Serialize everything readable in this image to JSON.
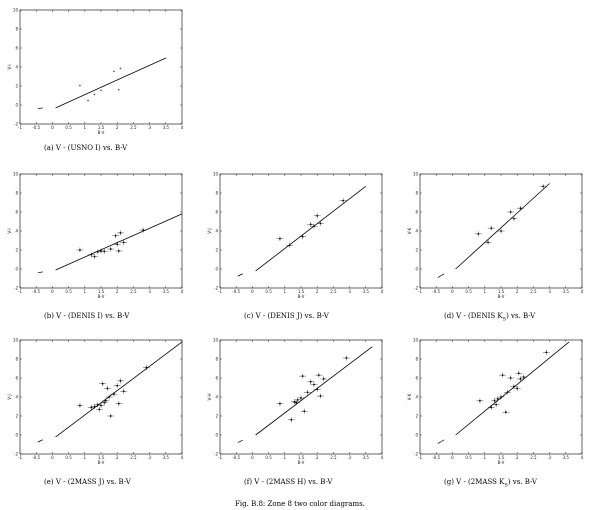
{
  "figure_caption": "Fig. B.8: Zone 8 two color diagrams.",
  "chart_data": [
    {
      "type": "scatter",
      "caption": "(a) V - (USNO I) vs. B-V",
      "xlabel": "B-V",
      "ylabel": "V-I",
      "xlim": [
        -1,
        4
      ],
      "ylim": [
        -2,
        10
      ],
      "xticks": [
        "-1",
        "-0.5",
        "0",
        "0.5",
        "1",
        "1.5",
        "2",
        "2.5",
        "3",
        "3.5",
        "4"
      ],
      "yticks": [
        "-2",
        "0",
        "2",
        "4",
        "6",
        "8",
        "10"
      ],
      "errorbars": false,
      "points": [
        [
          0.85,
          2.05
        ],
        [
          1.1,
          0.45
        ],
        [
          1.3,
          1.1
        ],
        [
          1.5,
          1.55
        ],
        [
          1.9,
          3.55
        ],
        [
          2.1,
          3.85
        ],
        [
          2.05,
          1.6
        ]
      ],
      "fit_dashed": [
        [
          -0.45,
          -0.4
        ],
        [
          -0.3,
          -0.3
        ]
      ],
      "fit_line": [
        [
          0.1,
          -0.3
        ],
        [
          3.5,
          4.95
        ]
      ]
    },
    {
      "type": "scatter",
      "caption": "(b) V - (DENIS I) vs. B-V",
      "xlabel": "B-V",
      "ylabel": "V-I",
      "xlim": [
        -1,
        4
      ],
      "ylim": [
        -2,
        10
      ],
      "xticks": [
        "-1",
        "-0.5",
        "0",
        "0.5",
        "1",
        "1.5",
        "2",
        "2.5",
        "3",
        "3.5",
        "4"
      ],
      "yticks": [
        "-2",
        "0",
        "2",
        "4",
        "6",
        "8",
        "10"
      ],
      "errorbars": true,
      "points": [
        [
          0.85,
          2.0
        ],
        [
          1.2,
          1.5
        ],
        [
          1.4,
          1.8
        ],
        [
          1.5,
          1.9
        ],
        [
          1.6,
          1.85
        ],
        [
          1.8,
          2.1
        ],
        [
          1.95,
          3.5
        ],
        [
          2.1,
          3.8
        ],
        [
          2.0,
          2.6
        ],
        [
          2.2,
          2.8
        ],
        [
          2.05,
          1.9
        ],
        [
          2.8,
          4.1
        ],
        [
          1.3,
          1.3
        ]
      ],
      "fit_dashed": [
        [
          -0.45,
          -0.4
        ],
        [
          -0.3,
          -0.3
        ]
      ],
      "fit_line": [
        [
          0.1,
          -0.1
        ],
        [
          4.0,
          5.8
        ]
      ]
    },
    {
      "type": "scatter",
      "caption": "(c) V - (DENIS J) vs. B-V",
      "xlabel": "B-V",
      "ylabel": "V-J",
      "xlim": [
        -1,
        4
      ],
      "ylim": [
        -2,
        10
      ],
      "xticks": [
        "-1",
        "-0.5",
        "0",
        "0.5",
        "1",
        "1.5",
        "2",
        "2.5",
        "3",
        "3.5",
        "4"
      ],
      "yticks": [
        "-2",
        "0",
        "2",
        "4",
        "6",
        "8",
        "10"
      ],
      "errorbars": true,
      "points": [
        [
          0.85,
          3.2
        ],
        [
          1.15,
          2.5
        ],
        [
          1.55,
          3.4
        ],
        [
          1.8,
          4.7
        ],
        [
          1.9,
          4.5
        ],
        [
          2.0,
          5.6
        ],
        [
          2.1,
          4.8
        ],
        [
          2.8,
          7.2
        ]
      ],
      "fit_dashed": [
        [
          -0.45,
          -0.75
        ],
        [
          -0.3,
          -0.5
        ]
      ],
      "fit_line": [
        [
          0.1,
          -0.2
        ],
        [
          3.5,
          8.7
        ]
      ]
    },
    {
      "type": "scatter",
      "caption": "(d) V - (DENIS K_S) vs. B-V",
      "caption_main": "(d) V - (DENIS K",
      "caption_sub": "S",
      "caption_tail": ") vs. B-V",
      "xlabel": "B-V",
      "ylabel": "V-K",
      "xlim": [
        -1,
        4
      ],
      "ylim": [
        -2,
        10
      ],
      "xticks": [
        "-1",
        "-0.5",
        "0",
        "0.5",
        "1",
        "1.5",
        "2",
        "2.5",
        "3",
        "3.5",
        "4"
      ],
      "yticks": [
        "-2",
        "0",
        "2",
        "4",
        "6",
        "8",
        "10"
      ],
      "errorbars": true,
      "points": [
        [
          0.8,
          3.7
        ],
        [
          1.1,
          2.8
        ],
        [
          1.2,
          4.3
        ],
        [
          1.5,
          4.0
        ],
        [
          1.8,
          6.0
        ],
        [
          1.9,
          5.3
        ],
        [
          2.1,
          6.4
        ],
        [
          2.8,
          8.7
        ]
      ],
      "fit_dashed": [
        [
          -0.45,
          -0.9
        ],
        [
          -0.25,
          -0.5
        ]
      ],
      "fit_line": [
        [
          0.1,
          0.0
        ],
        [
          3.0,
          9.0
        ]
      ]
    },
    {
      "type": "scatter",
      "caption": "(e) V - (2MASS J) vs. B-V",
      "xlabel": "B-V",
      "ylabel": "V-J",
      "xlim": [
        -1,
        4
      ],
      "ylim": [
        -2,
        10
      ],
      "xticks": [
        "-1",
        "-0.5",
        "0",
        "0.5",
        "1",
        "1.5",
        "2",
        "2.5",
        "3",
        "3.5",
        "4"
      ],
      "yticks": [
        "-2",
        "0",
        "2",
        "4",
        "6",
        "8",
        "10"
      ],
      "errorbars": true,
      "points": [
        [
          0.85,
          3.1
        ],
        [
          1.2,
          2.9
        ],
        [
          1.3,
          3.0
        ],
        [
          1.4,
          3.2
        ],
        [
          1.5,
          3.1
        ],
        [
          1.55,
          5.4
        ],
        [
          1.6,
          3.4
        ],
        [
          1.7,
          4.9
        ],
        [
          1.75,
          4.0
        ],
        [
          1.8,
          2.0
        ],
        [
          1.9,
          4.3
        ],
        [
          2.0,
          5.2
        ],
        [
          2.05,
          3.3
        ],
        [
          2.1,
          5.7
        ],
        [
          2.2,
          4.6
        ],
        [
          2.9,
          7.1
        ],
        [
          1.45,
          2.7
        ],
        [
          1.65,
          3.6
        ]
      ],
      "fit_dashed": [
        [
          -0.45,
          -0.75
        ],
        [
          -0.3,
          -0.5
        ]
      ],
      "fit_line": [
        [
          0.1,
          -0.2
        ],
        [
          4.0,
          9.8
        ]
      ]
    },
    {
      "type": "scatter",
      "caption": "(f) V - (2MASS H) vs. B-V",
      "xlabel": "B-V",
      "ylabel": "V-H",
      "xlim": [
        -1,
        4
      ],
      "ylim": [
        -2,
        10
      ],
      "xticks": [
        "-1",
        "-0.5",
        "0",
        "0.5",
        "1",
        "1.5",
        "2",
        "2.5",
        "3",
        "3.5",
        "4"
      ],
      "yticks": [
        "-2",
        "0",
        "2",
        "4",
        "6",
        "8",
        "10"
      ],
      "errorbars": true,
      "points": [
        [
          0.85,
          3.3
        ],
        [
          1.2,
          1.6
        ],
        [
          1.3,
          3.5
        ],
        [
          1.4,
          3.7
        ],
        [
          1.5,
          3.9
        ],
        [
          1.55,
          6.2
        ],
        [
          1.7,
          4.5
        ],
        [
          1.8,
          5.6
        ],
        [
          1.9,
          5.3
        ],
        [
          2.0,
          4.8
        ],
        [
          2.05,
          6.3
        ],
        [
          2.1,
          4.1
        ],
        [
          2.2,
          5.9
        ],
        [
          2.9,
          8.1
        ],
        [
          1.6,
          2.5
        ],
        [
          1.35,
          3.4
        ]
      ],
      "fit_dashed": [
        [
          -0.45,
          -0.8
        ],
        [
          -0.3,
          -0.55
        ]
      ],
      "fit_line": [
        [
          0.1,
          0.0
        ],
        [
          3.7,
          9.3
        ]
      ]
    },
    {
      "type": "scatter",
      "caption": "(g) V - (2MASS K_S) vs. B-V",
      "caption_main": "(g) V - (2MASS K",
      "caption_sub": "S",
      "caption_tail": ") vs. B-V",
      "xlabel": "B-V",
      "ylabel": "V-K",
      "xlim": [
        -1,
        4
      ],
      "ylim": [
        -2,
        10
      ],
      "xticks": [
        "-1",
        "-0.5",
        "0",
        "0.5",
        "1",
        "1.5",
        "2",
        "2.5",
        "3",
        "3.5",
        "4"
      ],
      "yticks": [
        "-2",
        "0",
        "2",
        "4",
        "6",
        "8",
        "10"
      ],
      "errorbars": true,
      "points": [
        [
          0.85,
          3.6
        ],
        [
          1.2,
          2.9
        ],
        [
          1.3,
          3.6
        ],
        [
          1.4,
          3.8
        ],
        [
          1.5,
          4.0
        ],
        [
          1.55,
          6.3
        ],
        [
          1.65,
          2.4
        ],
        [
          1.7,
          4.5
        ],
        [
          1.8,
          6.0
        ],
        [
          1.9,
          5.1
        ],
        [
          2.0,
          4.9
        ],
        [
          2.05,
          6.5
        ],
        [
          2.1,
          5.9
        ],
        [
          2.2,
          6.1
        ],
        [
          2.9,
          8.7
        ],
        [
          1.35,
          3.2
        ]
      ],
      "fit_dashed": [
        [
          -0.45,
          -0.9
        ],
        [
          -0.25,
          -0.5
        ]
      ],
      "fit_line": [
        [
          0.1,
          0.0
        ],
        [
          3.6,
          9.8
        ]
      ]
    }
  ]
}
